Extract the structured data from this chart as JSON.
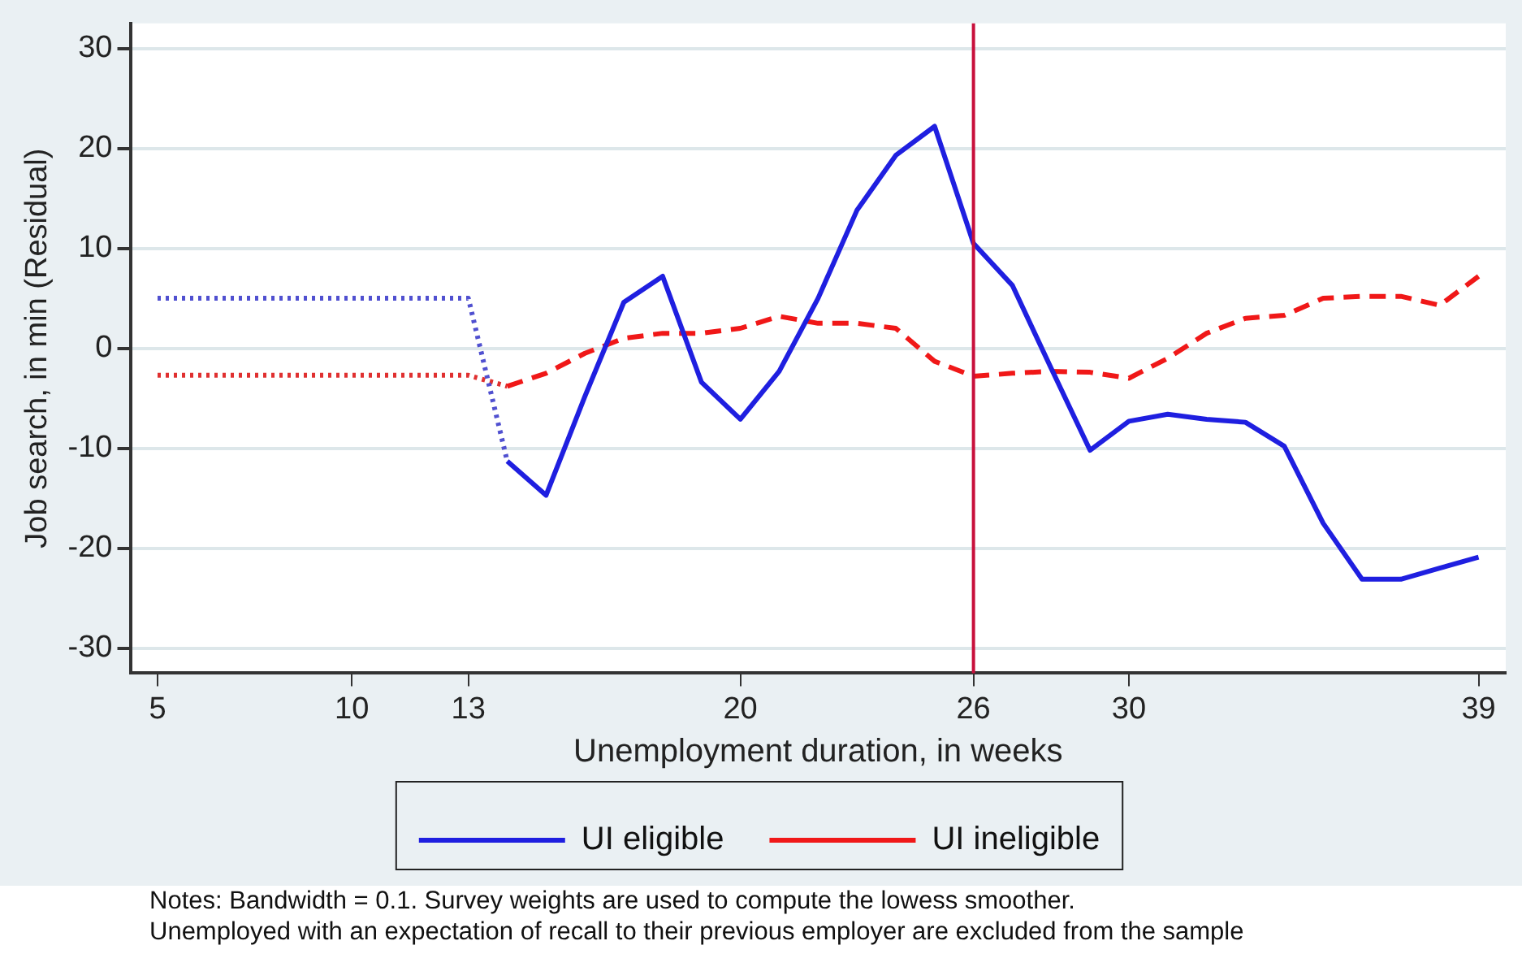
{
  "chart_data": {
    "type": "line",
    "xlabel": "Unemployment duration, in weeks",
    "ylabel": "Job search, in min (Residual)",
    "xlim": [
      4.3,
      39.7
    ],
    "xticks": [
      5,
      10,
      13,
      20,
      26,
      30,
      39
    ],
    "ylim": [
      -32.5,
      32.5
    ],
    "yticks": [
      -30,
      -20,
      -10,
      0,
      10,
      20,
      30
    ],
    "grid": "y",
    "legend": "bottom",
    "marker": "none",
    "series": [
      {
        "name": "UI eligible",
        "color": "#1f1fe0",
        "line_style": "solid",
        "x": [
          14,
          15,
          16,
          17,
          18,
          19,
          20,
          21,
          22,
          23,
          24,
          25,
          26,
          27,
          28,
          29,
          30,
          31,
          32,
          33,
          34,
          35,
          36,
          37,
          38,
          39
        ],
        "values": [
          -11.3,
          -14.7,
          -4.8,
          4.6,
          7.2,
          -3.4,
          -7.1,
          -2.3,
          5,
          13.8,
          19.3,
          22.2,
          10.5,
          6.3,
          -2,
          -10.2,
          -7.3,
          -6.6,
          -7.1,
          -7.4,
          -9.8,
          -17.5,
          -23.1,
          -23.1,
          -22,
          -20.9
        ]
      },
      {
        "name": "UI ineligible",
        "color": "#f01818",
        "line_style": "dashed",
        "x": [
          14,
          15,
          16,
          17,
          18,
          19,
          20,
          21,
          22,
          23,
          24,
          25,
          26,
          27,
          28,
          29,
          30,
          31,
          32,
          33,
          34,
          35,
          36,
          37,
          38,
          39
        ],
        "values": [
          -3.8,
          -2.5,
          -0.5,
          1,
          1.5,
          1.5,
          2,
          3.2,
          2.5,
          2.5,
          2,
          -1.3,
          -2.8,
          -2.5,
          -2.3,
          -2.4,
          -3,
          -1,
          1.5,
          3,
          3.3,
          5,
          5.2,
          5.2,
          4.3,
          7.2
        ]
      },
      {
        "color": "#5050d0",
        "line_style": "dotted",
        "x": [
          5,
          13,
          14
        ],
        "values": [
          5,
          5,
          -11.3
        ]
      },
      {
        "color": "#e03030",
        "line_style": "dotted",
        "x": [
          5,
          13,
          14
        ],
        "values": [
          -2.7,
          -2.7,
          -3.8
        ]
      }
    ],
    "ref_lines": [
      {
        "axis": "x",
        "value": 26,
        "color": "#c8103c"
      }
    ],
    "annotations": [
      "Notes: Bandwidth = 0.1. Survey weights are used to compute the lowess smoother.",
      "Unemployed with an expectation of recall to their previous employer are excluded from the sample"
    ]
  }
}
